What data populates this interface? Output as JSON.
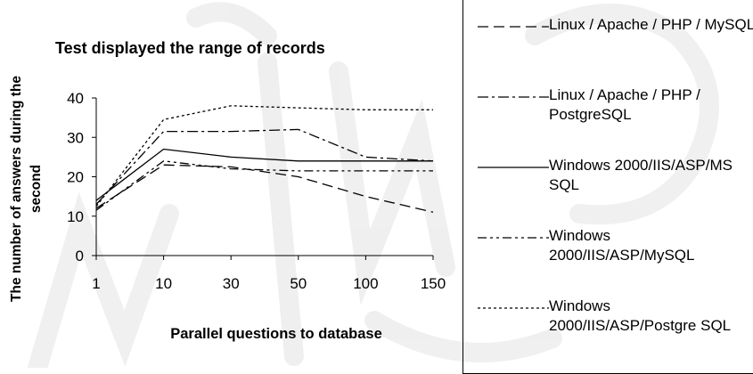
{
  "chart_data": {
    "type": "line",
    "title": "Test displayed the range of records",
    "xlabel": "Parallel questions to database",
    "ylabel": "The number of answers during the second",
    "categories": [
      "1",
      "10",
      "30",
      "50",
      "100",
      "150"
    ],
    "ylim": [
      0,
      40
    ],
    "yticks": [
      "0",
      "10",
      "20",
      "30",
      "40"
    ],
    "grid": false,
    "legend_position": "right",
    "series": [
      {
        "name": "Linux / Apache / PHP / MySQL",
        "style": "dashed",
        "values": [
          12,
          23,
          22.5,
          20,
          15,
          11
        ]
      },
      {
        "name": "Linux / Apache / PHP / PostgreSQL",
        "style": "dash-dot-long",
        "values": [
          13,
          31.5,
          31.5,
          32,
          25,
          24
        ]
      },
      {
        "name": "Windows 2000/IIS/ASP/MS SQL",
        "style": "solid",
        "values": [
          14,
          27,
          25,
          24,
          24,
          24
        ]
      },
      {
        "name": "Windows 2000/IIS/ASP/MySQL",
        "style": "dash-dot-dot",
        "values": [
          11.5,
          24,
          22,
          21.5,
          21.5,
          21.5
        ]
      },
      {
        "name": "Windows 2000/IIS/ASP/PostgreSQL",
        "style": "dotted",
        "values": [
          12.5,
          34.5,
          38,
          37.5,
          37,
          37
        ]
      }
    ]
  },
  "legend": {
    "items": [
      {
        "text": "Linux / Apache / PHP / MySQL"
      },
      {
        "text": "Linux / Apache / PHP / PostgreSQL"
      },
      {
        "text": "Windows 2000/IIS/ASP/MS SQL"
      },
      {
        "text": "Windows 2000/IIS/ASP/MySQL"
      },
      {
        "text": "Windows 2000/IIS/ASP/Postgre SQL"
      }
    ]
  }
}
